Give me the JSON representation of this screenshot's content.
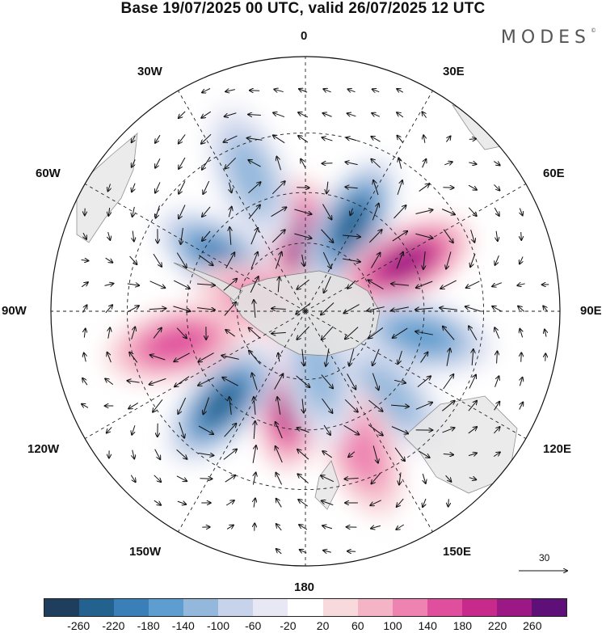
{
  "title": "Base 19/07/2025 00 UTC, valid 26/07/2025 12 UTC",
  "brand": "MODES",
  "brand_mark": "©",
  "longitude_labels": {
    "lon_0": "0",
    "lon_30e": "30E",
    "lon_60e": "60E",
    "lon_90e": "90E",
    "lon_120e": "120E",
    "lon_150e": "150E",
    "lon_180": "180",
    "lon_150w": "150W",
    "lon_120w": "120W",
    "lon_90w": "90W",
    "lon_60w": "60W",
    "lon_30w": "30W"
  },
  "reference_vector": "30",
  "colorbar": {
    "colors": [
      "#1f3d5c",
      "#23628f",
      "#3a7fb7",
      "#5e9dcf",
      "#93b8dc",
      "#c6d3ea",
      "#e8e8f4",
      "#ffffff",
      "#f8dadd",
      "#f5b4c6",
      "#ee82b1",
      "#e04f9d",
      "#c72a8a",
      "#9b1885",
      "#5e0f78"
    ],
    "tick_labels": [
      "-260",
      "-220",
      "-180",
      "-140",
      "-100",
      "-60",
      "-20",
      "20",
      "60",
      "100",
      "140",
      "180",
      "220",
      "260"
    ]
  },
  "anomaly_centers": [
    {
      "lon": -3,
      "colat": 27,
      "value": 240
    },
    {
      "lon": 28,
      "colat": 42,
      "value": -240
    },
    {
      "lon": 64,
      "colat": 47,
      "value": 250
    },
    {
      "lon": 102,
      "colat": 50,
      "value": -170
    },
    {
      "lon": 135,
      "colat": 50,
      "value": -120
    },
    {
      "lon": 158,
      "colat": 60,
      "value": 120
    },
    {
      "lon": -172,
      "colat": 38,
      "value": 230
    },
    {
      "lon": -138,
      "colat": 52,
      "value": -220
    },
    {
      "lon": -104,
      "colat": 55,
      "value": 140
    },
    {
      "lon": -58,
      "colat": 43,
      "value": -190
    },
    {
      "lon": -22,
      "colat": 60,
      "value": -120
    },
    {
      "lon": -75,
      "colat": 18,
      "value": 110
    },
    {
      "lon": 168,
      "colat": 28,
      "value": -110
    }
  ]
}
